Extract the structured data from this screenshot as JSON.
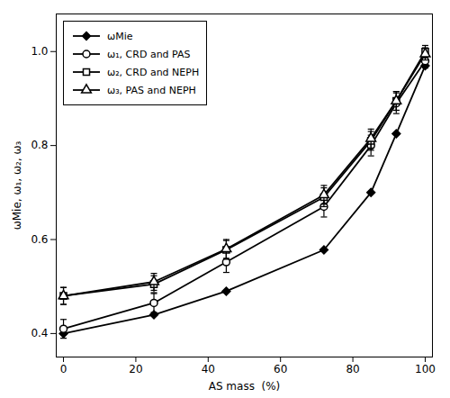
{
  "chart_data": {
    "type": "line",
    "x": [
      0,
      25,
      45,
      72,
      85,
      92,
      100
    ],
    "series": [
      {
        "name": "ωMie",
        "color": "#000000",
        "marker": "diamond",
        "values": [
          0.4,
          0.44,
          0.49,
          0.578,
          0.7,
          0.825,
          0.97
        ]
      },
      {
        "name": "ω₁, CRD and PAS",
        "color": "#000000",
        "marker": "circle",
        "values": [
          0.41,
          0.465,
          0.552,
          0.67,
          0.8,
          0.89,
          0.98
        ],
        "errors": [
          0.02,
          0.02,
          0.022,
          0.022,
          0.022,
          0.022,
          0.015
        ]
      },
      {
        "name": "ω₂, CRD and NEPH",
        "color": "#000000",
        "marker": "square",
        "values": [
          0.48,
          0.505,
          0.578,
          0.69,
          0.81,
          0.895,
          1.0
        ],
        "errors": [
          0.018,
          0.018,
          0.02,
          0.02,
          0.02,
          0.02,
          0.013
        ]
      },
      {
        "name": "ω₃, PAS and NEPH",
        "color": "#000000",
        "marker": "triangle",
        "values": [
          0.48,
          0.51,
          0.58,
          0.695,
          0.815,
          0.895,
          0.995
        ],
        "errors": [
          0.018,
          0.018,
          0.02,
          0.02,
          0.02,
          0.02,
          0.013
        ]
      }
    ],
    "xlabel": "AS mass  (%)",
    "ylabel": "ωMie, ω₁, ω₂, ω₃",
    "xlim": [
      -2,
      102
    ],
    "ylim": [
      0.35,
      1.08
    ],
    "xticks": [
      0,
      20,
      40,
      60,
      80,
      100
    ],
    "yticks": [
      0.4,
      0.6,
      0.8,
      {
        "value": 1.0,
        "label": "1.0"
      }
    ],
    "legend": "upper left",
    "grid": false
  }
}
